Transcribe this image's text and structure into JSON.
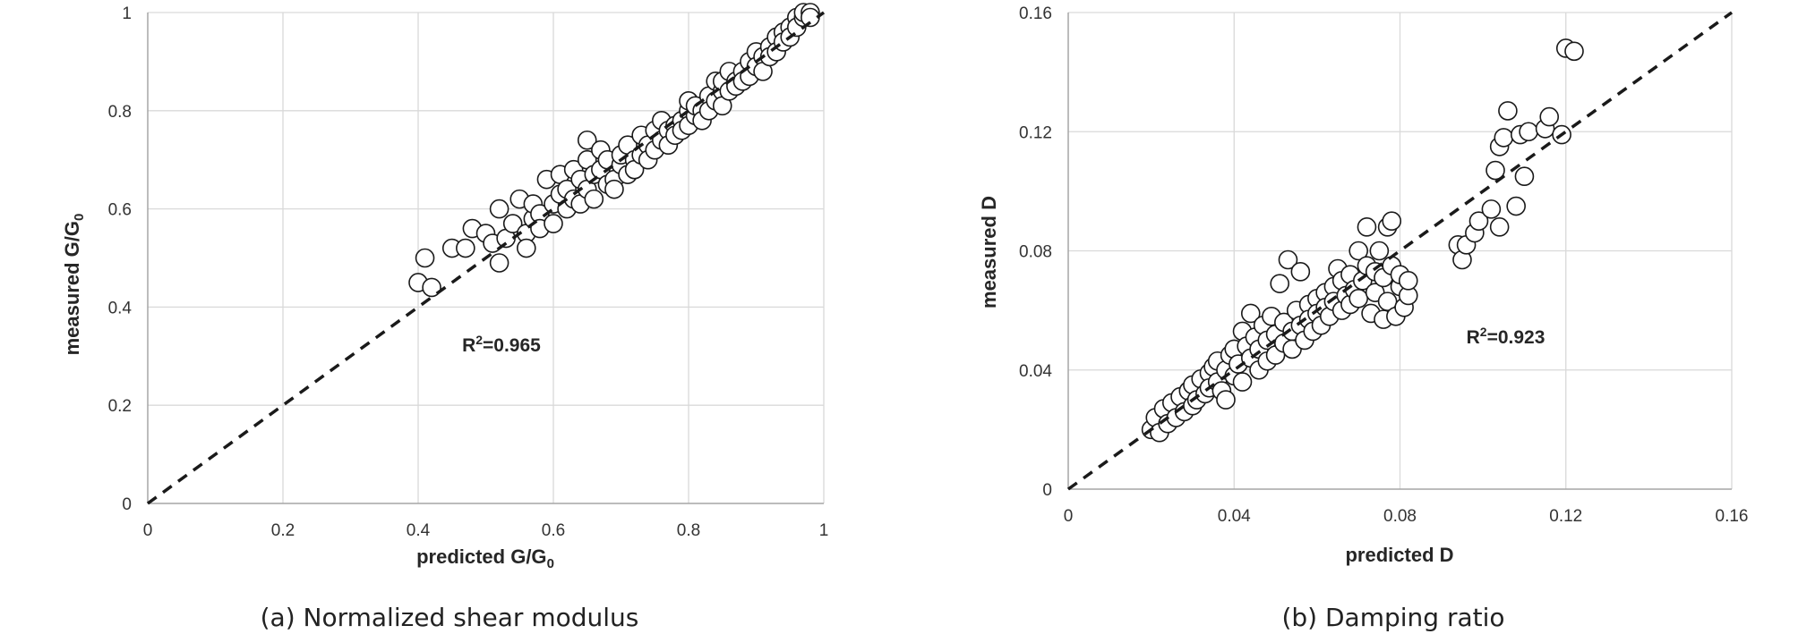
{
  "chart_data": [
    {
      "type": "scatter",
      "title": "",
      "caption": "(a) Normalized shear modulus",
      "xlabel": "predicted G/G₀",
      "ylabel": "measured G/G₀",
      "xlim": [
        0,
        1
      ],
      "ylim": [
        0,
        1
      ],
      "x_ticks": [
        "0",
        "0.2",
        "0.4",
        "0.6",
        "0.8",
        "1"
      ],
      "y_ticks": [
        "0",
        "0.2",
        "0.4",
        "0.6",
        "0.8",
        "1"
      ],
      "grid": "vertical and horizontal",
      "reference_line": "1:1 dashed line",
      "annotation": "R²=0.965",
      "points": [
        [
          0.4,
          0.45
        ],
        [
          0.41,
          0.5
        ],
        [
          0.42,
          0.44
        ],
        [
          0.45,
          0.52
        ],
        [
          0.47,
          0.52
        ],
        [
          0.48,
          0.56
        ],
        [
          0.5,
          0.55
        ],
        [
          0.51,
          0.53
        ],
        [
          0.52,
          0.6
        ],
        [
          0.52,
          0.49
        ],
        [
          0.53,
          0.54
        ],
        [
          0.54,
          0.57
        ],
        [
          0.55,
          0.62
        ],
        [
          0.56,
          0.55
        ],
        [
          0.56,
          0.52
        ],
        [
          0.57,
          0.58
        ],
        [
          0.57,
          0.61
        ],
        [
          0.58,
          0.59
        ],
        [
          0.58,
          0.56
        ],
        [
          0.59,
          0.66
        ],
        [
          0.6,
          0.61
        ],
        [
          0.6,
          0.57
        ],
        [
          0.61,
          0.63
        ],
        [
          0.61,
          0.67
        ],
        [
          0.62,
          0.6
        ],
        [
          0.62,
          0.64
        ],
        [
          0.63,
          0.68
        ],
        [
          0.63,
          0.62
        ],
        [
          0.64,
          0.66
        ],
        [
          0.64,
          0.61
        ],
        [
          0.65,
          0.74
        ],
        [
          0.65,
          0.7
        ],
        [
          0.65,
          0.64
        ],
        [
          0.66,
          0.67
        ],
        [
          0.66,
          0.62
        ],
        [
          0.67,
          0.72
        ],
        [
          0.67,
          0.68
        ],
        [
          0.68,
          0.65
        ],
        [
          0.68,
          0.7
        ],
        [
          0.69,
          0.66
        ],
        [
          0.69,
          0.64
        ],
        [
          0.7,
          0.69
        ],
        [
          0.7,
          0.71
        ],
        [
          0.71,
          0.67
        ],
        [
          0.71,
          0.73
        ],
        [
          0.72,
          0.7
        ],
        [
          0.72,
          0.68
        ],
        [
          0.73,
          0.75
        ],
        [
          0.73,
          0.71
        ],
        [
          0.74,
          0.73
        ],
        [
          0.74,
          0.7
        ],
        [
          0.75,
          0.76
        ],
        [
          0.75,
          0.72
        ],
        [
          0.76,
          0.78
        ],
        [
          0.76,
          0.74
        ],
        [
          0.77,
          0.76
        ],
        [
          0.77,
          0.73
        ],
        [
          0.78,
          0.77
        ],
        [
          0.78,
          0.75
        ],
        [
          0.79,
          0.78
        ],
        [
          0.79,
          0.76
        ],
        [
          0.8,
          0.8
        ],
        [
          0.8,
          0.77
        ],
        [
          0.8,
          0.82
        ],
        [
          0.81,
          0.79
        ],
        [
          0.81,
          0.81
        ],
        [
          0.82,
          0.8
        ],
        [
          0.82,
          0.78
        ],
        [
          0.83,
          0.83
        ],
        [
          0.83,
          0.8
        ],
        [
          0.84,
          0.82
        ],
        [
          0.84,
          0.86
        ],
        [
          0.85,
          0.84
        ],
        [
          0.85,
          0.81
        ],
        [
          0.85,
          0.86
        ],
        [
          0.86,
          0.84
        ],
        [
          0.86,
          0.88
        ],
        [
          0.87,
          0.86
        ],
        [
          0.87,
          0.85
        ],
        [
          0.88,
          0.88
        ],
        [
          0.88,
          0.86
        ],
        [
          0.89,
          0.9
        ],
        [
          0.89,
          0.87
        ],
        [
          0.9,
          0.92
        ],
        [
          0.9,
          0.89
        ],
        [
          0.91,
          0.91
        ],
        [
          0.91,
          0.88
        ],
        [
          0.92,
          0.93
        ],
        [
          0.92,
          0.91
        ],
        [
          0.93,
          0.95
        ],
        [
          0.93,
          0.92
        ],
        [
          0.94,
          0.96
        ],
        [
          0.94,
          0.94
        ],
        [
          0.95,
          0.97
        ],
        [
          0.95,
          0.95
        ],
        [
          0.96,
          0.99
        ],
        [
          0.96,
          0.97
        ],
        [
          0.97,
          0.99
        ],
        [
          0.97,
          1.0
        ],
        [
          0.98,
          1.0
        ],
        [
          0.98,
          0.99
        ]
      ]
    },
    {
      "type": "scatter",
      "title": "",
      "caption": "(b) Damping ratio",
      "xlabel": "predicted D",
      "ylabel": "measured D",
      "xlim": [
        0,
        0.16
      ],
      "ylim": [
        0,
        0.16
      ],
      "x_ticks": [
        "0",
        "0.04",
        "0.08",
        "0.12",
        "0.16"
      ],
      "y_ticks": [
        "0",
        "0.04",
        "0.08",
        "0.12",
        "0.16"
      ],
      "grid": "vertical and horizontal",
      "reference_line": "1:1 dashed line",
      "annotation": "R²=0.923",
      "points": [
        [
          0.02,
          0.02
        ],
        [
          0.021,
          0.024
        ],
        [
          0.022,
          0.019
        ],
        [
          0.023,
          0.027
        ],
        [
          0.024,
          0.022
        ],
        [
          0.025,
          0.029
        ],
        [
          0.026,
          0.024
        ],
        [
          0.027,
          0.031
        ],
        [
          0.028,
          0.026
        ],
        [
          0.029,
          0.033
        ],
        [
          0.03,
          0.028
        ],
        [
          0.03,
          0.035
        ],
        [
          0.031,
          0.03
        ],
        [
          0.032,
          0.037
        ],
        [
          0.033,
          0.032
        ],
        [
          0.034,
          0.039
        ],
        [
          0.034,
          0.034
        ],
        [
          0.035,
          0.041
        ],
        [
          0.036,
          0.036
        ],
        [
          0.036,
          0.043
        ],
        [
          0.037,
          0.033
        ],
        [
          0.038,
          0.04
        ],
        [
          0.038,
          0.03
        ],
        [
          0.039,
          0.045
        ],
        [
          0.04,
          0.038
        ],
        [
          0.04,
          0.047
        ],
        [
          0.041,
          0.042
        ],
        [
          0.042,
          0.053
        ],
        [
          0.042,
          0.036
        ],
        [
          0.043,
          0.048
        ],
        [
          0.044,
          0.044
        ],
        [
          0.044,
          0.059
        ],
        [
          0.045,
          0.051
        ],
        [
          0.046,
          0.04
        ],
        [
          0.046,
          0.047
        ],
        [
          0.047,
          0.055
        ],
        [
          0.048,
          0.043
        ],
        [
          0.048,
          0.05
        ],
        [
          0.049,
          0.058
        ],
        [
          0.05,
          0.045
        ],
        [
          0.05,
          0.052
        ],
        [
          0.051,
          0.069
        ],
        [
          0.052,
          0.049
        ],
        [
          0.052,
          0.056
        ],
        [
          0.053,
          0.077
        ],
        [
          0.054,
          0.053
        ],
        [
          0.054,
          0.047
        ],
        [
          0.055,
          0.06
        ],
        [
          0.056,
          0.055
        ],
        [
          0.056,
          0.073
        ],
        [
          0.057,
          0.05
        ],
        [
          0.058,
          0.062
        ],
        [
          0.058,
          0.057
        ],
        [
          0.059,
          0.053
        ],
        [
          0.06,
          0.064
        ],
        [
          0.06,
          0.059
        ],
        [
          0.061,
          0.055
        ],
        [
          0.062,
          0.066
        ],
        [
          0.062,
          0.061
        ],
        [
          0.063,
          0.058
        ],
        [
          0.064,
          0.068
        ],
        [
          0.064,
          0.063
        ],
        [
          0.065,
          0.074
        ],
        [
          0.066,
          0.06
        ],
        [
          0.066,
          0.07
        ],
        [
          0.067,
          0.065
        ],
        [
          0.068,
          0.072
        ],
        [
          0.068,
          0.062
        ],
        [
          0.069,
          0.067
        ],
        [
          0.07,
          0.08
        ],
        [
          0.07,
          0.064
        ],
        [
          0.071,
          0.07
        ],
        [
          0.072,
          0.088
        ],
        [
          0.072,
          0.075
        ],
        [
          0.073,
          0.059
        ],
        [
          0.074,
          0.073
        ],
        [
          0.074,
          0.066
        ],
        [
          0.075,
          0.08
        ],
        [
          0.076,
          0.057
        ],
        [
          0.076,
          0.071
        ],
        [
          0.077,
          0.088
        ],
        [
          0.077,
          0.063
        ],
        [
          0.078,
          0.075
        ],
        [
          0.078,
          0.09
        ],
        [
          0.079,
          0.058
        ],
        [
          0.08,
          0.068
        ],
        [
          0.08,
          0.072
        ],
        [
          0.081,
          0.061
        ],
        [
          0.082,
          0.065
        ],
        [
          0.082,
          0.07
        ],
        [
          0.094,
          0.082
        ],
        [
          0.095,
          0.077
        ],
        [
          0.096,
          0.082
        ],
        [
          0.098,
          0.086
        ],
        [
          0.099,
          0.09
        ],
        [
          0.102,
          0.094
        ],
        [
          0.103,
          0.107
        ],
        [
          0.104,
          0.088
        ],
        [
          0.104,
          0.115
        ],
        [
          0.105,
          0.118
        ],
        [
          0.106,
          0.127
        ],
        [
          0.108,
          0.095
        ],
        [
          0.109,
          0.119
        ],
        [
          0.11,
          0.105
        ],
        [
          0.111,
          0.12
        ],
        [
          0.115,
          0.121
        ],
        [
          0.116,
          0.125
        ],
        [
          0.119,
          0.119
        ],
        [
          0.12,
          0.148
        ],
        [
          0.122,
          0.147
        ]
      ]
    }
  ]
}
